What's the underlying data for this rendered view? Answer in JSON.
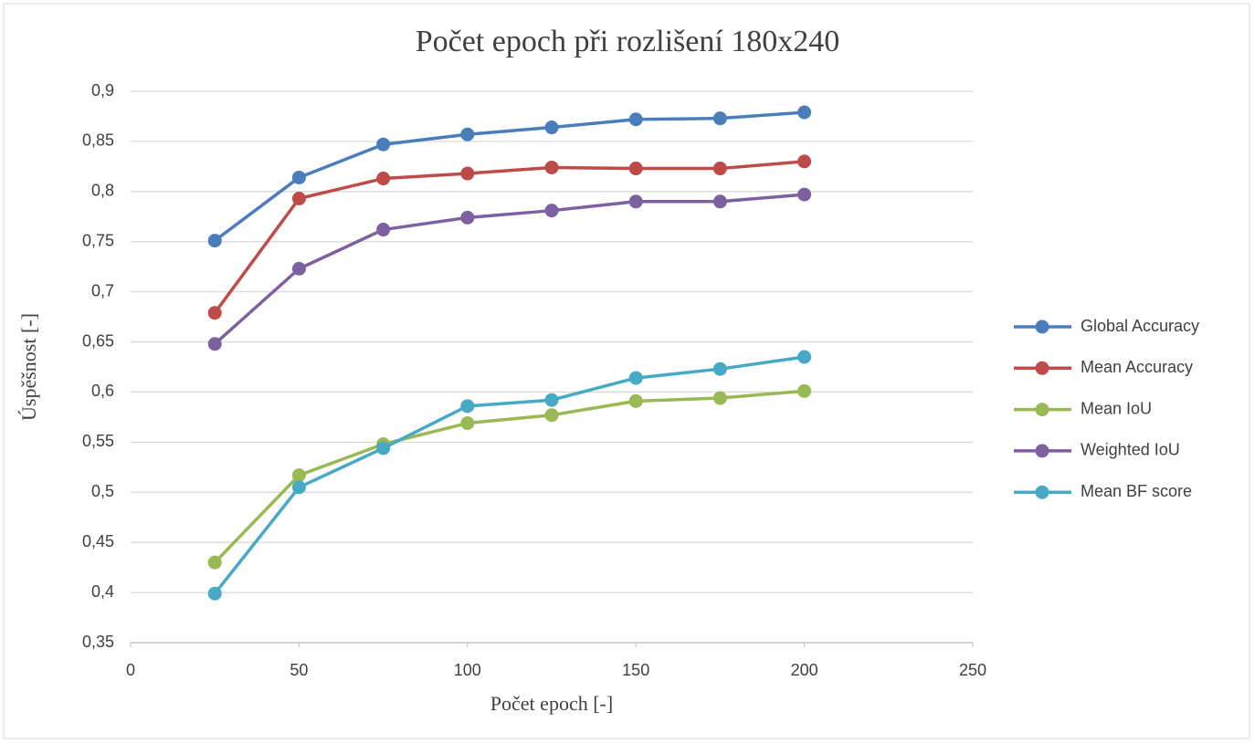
{
  "chart_data": {
    "type": "line",
    "title": "Počet epoch při rozlišení 180x240",
    "xlabel": "Počet epoch [-]",
    "ylabel": "Úspěšnost [-]",
    "x": [
      25,
      50,
      75,
      100,
      125,
      150,
      175,
      200
    ],
    "series": [
      {
        "name": "Global Accuracy",
        "color": "#4a7ebb",
        "values": [
          0.751,
          0.814,
          0.847,
          0.857,
          0.864,
          0.872,
          0.873,
          0.879
        ]
      },
      {
        "name": "Mean Accuracy",
        "color": "#be4b48",
        "values": [
          0.679,
          0.793,
          0.813,
          0.818,
          0.824,
          0.823,
          0.823,
          0.83
        ]
      },
      {
        "name": "Mean IoU",
        "color": "#98b954",
        "values": [
          0.43,
          0.517,
          0.548,
          0.569,
          0.577,
          0.591,
          0.594,
          0.601
        ]
      },
      {
        "name": "Weighted IoU",
        "color": "#7d60a0",
        "values": [
          0.648,
          0.723,
          0.762,
          0.774,
          0.781,
          0.79,
          0.79,
          0.797
        ]
      },
      {
        "name": "Mean BF score",
        "color": "#46aac5",
        "values": [
          0.399,
          0.505,
          0.544,
          0.586,
          0.592,
          0.614,
          0.623,
          0.635
        ]
      }
    ],
    "xlim": [
      0,
      250
    ],
    "xticks": [
      0,
      50,
      100,
      150,
      200,
      250
    ],
    "ylim": [
      0.35,
      0.9
    ],
    "yticks": [
      {
        "value": 0.35,
        "label": "0,35"
      },
      {
        "value": 0.4,
        "label": "0,4"
      },
      {
        "value": 0.45,
        "label": "0,45"
      },
      {
        "value": 0.5,
        "label": "0,5"
      },
      {
        "value": 0.55,
        "label": "0,55"
      },
      {
        "value": 0.6,
        "label": "0,6"
      },
      {
        "value": 0.65,
        "label": "0,65"
      },
      {
        "value": 0.7,
        "label": "0,7"
      },
      {
        "value": 0.75,
        "label": "0,75"
      },
      {
        "value": 0.8,
        "label": "0,8"
      },
      {
        "value": 0.85,
        "label": "0,85"
      },
      {
        "value": 0.9,
        "label": "0,9"
      }
    ],
    "grid": true,
    "legend": "right"
  }
}
